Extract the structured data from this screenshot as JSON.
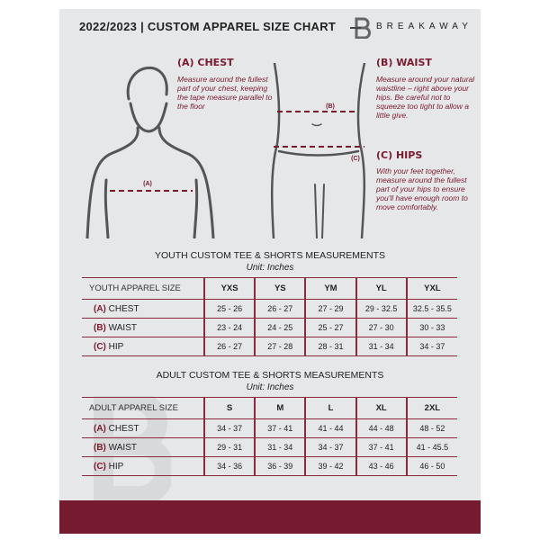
{
  "header": {
    "title": "2022/2023  |  CUSTOM APPAREL SIZE CHART",
    "brand": "BREAKAWAY"
  },
  "measures": {
    "chest": {
      "heading": "(A) CHEST",
      "text": "Measure around the fullest part of your chest, keeping the tape measure parallel to the floor",
      "marker": "(A)"
    },
    "waist": {
      "heading": "(B) WAIST",
      "text": "Measure around your natural waistline – right above your hips. Be careful not to squeeze too tight to allow a little give.",
      "marker": "(B)"
    },
    "hips": {
      "heading": "(C) HIPS",
      "text": "With your feet together, measure around the fullest part of your hips to ensure you'll have enough room to move comfortably.",
      "marker": "(C)"
    }
  },
  "youth": {
    "title": "YOUTH CUSTOM TEE & SHORTS MEASUREMENTS",
    "unit": "Unit: Inches",
    "header": "YOUTH APPAREL SIZE",
    "sizes": [
      "YXS",
      "YS",
      "YM",
      "YL",
      "YXL"
    ],
    "rows": [
      {
        "code": "(A)",
        "label": "CHEST",
        "values": [
          "25 - 26",
          "26 - 27",
          "27 - 29",
          "29 - 32.5",
          "32.5 - 35.5"
        ]
      },
      {
        "code": "(B)",
        "label": "WAIST",
        "values": [
          "23 - 24",
          "24 - 25",
          "25 - 27",
          "27 - 30",
          "30 - 33"
        ]
      },
      {
        "code": "(C)",
        "label": "HIP",
        "values": [
          "26 - 27",
          "27 - 28",
          "28 - 31",
          "31 - 34",
          "34 - 37"
        ]
      }
    ]
  },
  "adult": {
    "title": "ADULT CUSTOM TEE & SHORTS MEASUREMENTS",
    "unit": "Unit: Inches",
    "header": "ADULT APPAREL SIZE",
    "sizes": [
      "S",
      "M",
      "L",
      "XL",
      "2XL"
    ],
    "rows": [
      {
        "code": "(A)",
        "label": "CHEST",
        "values": [
          "34 - 37",
          "37 - 41",
          "41 - 44",
          "44 - 48",
          "48 - 52"
        ]
      },
      {
        "code": "(B)",
        "label": "WAIST",
        "values": [
          "29 - 31",
          "31 - 34",
          "34 - 37",
          "37 - 41",
          "41 - 45.5"
        ]
      },
      {
        "code": "(C)",
        "label": "HIP",
        "values": [
          "34 - 36",
          "36 - 39",
          "39 - 42",
          "43 - 46",
          "46 - 50"
        ]
      }
    ]
  },
  "colors": {
    "accent": "#751a2f",
    "panel": "#e6e7e9"
  }
}
